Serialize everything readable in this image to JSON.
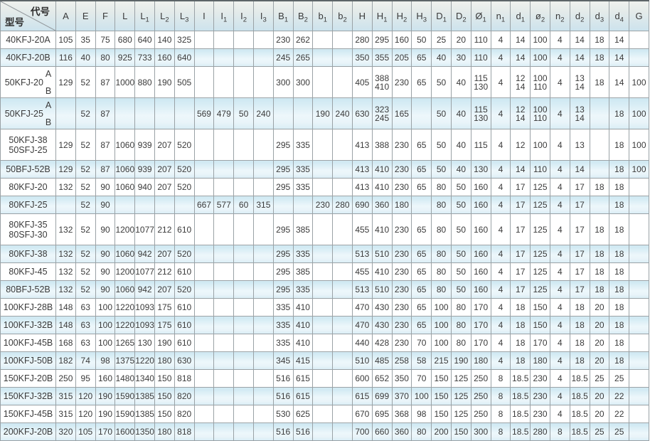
{
  "header": {
    "corner_top": "代号",
    "corner_bottom": "型号"
  },
  "colors": {
    "shaded_row_top": "#cde8f2",
    "shaded_row_bottom": "#d9edf5",
    "header_top": "#eff1ee",
    "header_bottom": "#cde3ed",
    "grid_line": "#9aa2a6",
    "text": "#3a3a3a"
  },
  "columns": [
    {
      "base": "A",
      "sub": ""
    },
    {
      "base": "E",
      "sub": ""
    },
    {
      "base": "F",
      "sub": ""
    },
    {
      "base": "L",
      "sub": ""
    },
    {
      "base": "L",
      "sub": "1"
    },
    {
      "base": "L",
      "sub": "2"
    },
    {
      "base": "L",
      "sub": "3"
    },
    {
      "base": "I",
      "sub": ""
    },
    {
      "base": "I",
      "sub": "1"
    },
    {
      "base": "I",
      "sub": "2"
    },
    {
      "base": "I",
      "sub": "3"
    },
    {
      "base": "B",
      "sub": "1"
    },
    {
      "base": "B",
      "sub": "2"
    },
    {
      "base": "b",
      "sub": "1"
    },
    {
      "base": "b",
      "sub": "2"
    },
    {
      "base": "H",
      "sub": ""
    },
    {
      "base": "H",
      "sub": "1"
    },
    {
      "base": "H",
      "sub": "2"
    },
    {
      "base": "H",
      "sub": "3"
    },
    {
      "base": "D",
      "sub": "1"
    },
    {
      "base": "D",
      "sub": "2"
    },
    {
      "base": "Ø",
      "sub": "1"
    },
    {
      "base": "n",
      "sub": "1"
    },
    {
      "base": "d",
      "sub": "1"
    },
    {
      "base": "ø",
      "sub": "2"
    },
    {
      "base": "n",
      "sub": "2"
    },
    {
      "base": "d",
      "sub": "2"
    },
    {
      "base": "d",
      "sub": "3"
    },
    {
      "base": "d",
      "sub": "4"
    },
    {
      "base": "G",
      "sub": ""
    }
  ],
  "rows": [
    {
      "model": [
        "40KFJ-20A"
      ],
      "variants": null,
      "shaded": false,
      "tall": false,
      "values": [
        "105",
        "35",
        "75",
        "680",
        "640",
        "140",
        "325",
        "",
        "",
        "",
        "",
        "230",
        "262",
        "",
        "",
        "280",
        "295",
        "160",
        "50",
        "25",
        "20",
        "110",
        "4",
        "14",
        "100",
        "4",
        "14",
        "18",
        "14",
        ""
      ]
    },
    {
      "model": [
        "40KFJ-20B"
      ],
      "variants": null,
      "shaded": true,
      "tall": false,
      "values": [
        "116",
        "40",
        "80",
        "925",
        "733",
        "160",
        "640",
        "",
        "",
        "",
        "",
        "245",
        "265",
        "",
        "",
        "350",
        "355",
        "205",
        "65",
        "40",
        "30",
        "110",
        "4",
        "14",
        "100",
        "4",
        "14",
        "18",
        "14",
        ""
      ]
    },
    {
      "model": [
        "50KFJ-20"
      ],
      "variants": [
        "A",
        "B"
      ],
      "shaded": false,
      "tall": true,
      "values": [
        "129",
        "52",
        "87",
        "1000",
        "880",
        "190",
        "505",
        "",
        "",
        "",
        "",
        "300",
        "300",
        "",
        "",
        "405",
        {
          "top": "388",
          "bottom": "410"
        },
        "230",
        "65",
        "50",
        "40",
        {
          "top": "115",
          "bottom": "130"
        },
        "4",
        {
          "top": "12",
          "bottom": "14"
        },
        {
          "top": "100",
          "bottom": "110"
        },
        "4",
        {
          "top": "13",
          "bottom": "14"
        },
        "18",
        "14",
        "100"
      ]
    },
    {
      "model": [
        "50KFJ-25"
      ],
      "variants": [
        "A",
        "B"
      ],
      "shaded": true,
      "tall": true,
      "values": [
        "",
        "52",
        "87",
        "",
        "",
        "",
        "",
        "569",
        "479",
        "50",
        "240",
        "",
        "",
        "190",
        "240",
        "630",
        {
          "top": "323",
          "bottom": "245"
        },
        "165",
        "",
        "50",
        "40",
        {
          "top": "115",
          "bottom": "130"
        },
        "4",
        {
          "top": "12",
          "bottom": "14"
        },
        {
          "top": "100",
          "bottom": "110"
        },
        "4",
        {
          "top": "13",
          "bottom": "14"
        },
        "",
        "18",
        "100"
      ]
    },
    {
      "model": [
        "50KFJ-38",
        "50SFJ-25"
      ],
      "variants": null,
      "shaded": false,
      "tall": true,
      "values": [
        "129",
        "52",
        "87",
        "1060",
        "939",
        "207",
        "520",
        "",
        "",
        "",
        "",
        "295",
        "335",
        "",
        "",
        "413",
        "388",
        "230",
        "65",
        "50",
        "40",
        "115",
        "4",
        "12",
        "100",
        "4",
        "13",
        "",
        "18",
        "100"
      ]
    },
    {
      "model": [
        "50BFJ-52B"
      ],
      "variants": null,
      "shaded": true,
      "tall": false,
      "values": [
        "129",
        "52",
        "87",
        "1060",
        "939",
        "207",
        "520",
        "",
        "",
        "",
        "",
        "295",
        "335",
        "",
        "",
        "413",
        "410",
        "230",
        "65",
        "50",
        "40",
        "130",
        "4",
        "14",
        "110",
        "4",
        "14",
        "",
        "18",
        "100"
      ]
    },
    {
      "model": [
        "80KFJ-20"
      ],
      "variants": null,
      "shaded": false,
      "tall": false,
      "values": [
        "132",
        "52",
        "90",
        "1060",
        "940",
        "207",
        "520",
        "",
        "",
        "",
        "",
        "295",
        "335",
        "",
        "",
        "413",
        "410",
        "230",
        "65",
        "80",
        "50",
        "160",
        "4",
        "17",
        "125",
        "4",
        "17",
        "18",
        "18",
        ""
      ]
    },
    {
      "model": [
        "80KFJ-25"
      ],
      "variants": null,
      "shaded": true,
      "tall": false,
      "values": [
        "",
        "52",
        "90",
        "",
        "",
        "",
        "",
        "667",
        "577",
        "60",
        "315",
        "",
        "",
        "230",
        "280",
        "690",
        "360",
        "180",
        "",
        "80",
        "50",
        "160",
        "4",
        "17",
        "125",
        "4",
        "17",
        "",
        "18",
        ""
      ]
    },
    {
      "model": [
        "80KFJ-35",
        "80SFJ-30"
      ],
      "variants": null,
      "shaded": false,
      "tall": true,
      "values": [
        "132",
        "52",
        "90",
        "1200",
        "1077",
        "212",
        "610",
        "",
        "",
        "",
        "",
        "295",
        "385",
        "",
        "",
        "455",
        "410",
        "230",
        "65",
        "80",
        "50",
        "160",
        "4",
        "17",
        "125",
        "4",
        "17",
        "18",
        "18",
        ""
      ]
    },
    {
      "model": [
        "80KFJ-38"
      ],
      "variants": null,
      "shaded": true,
      "tall": false,
      "values": [
        "132",
        "52",
        "90",
        "1060",
        "942",
        "207",
        "520",
        "",
        "",
        "",
        "",
        "295",
        "335",
        "",
        "",
        "513",
        "510",
        "230",
        "65",
        "80",
        "50",
        "160",
        "4",
        "17",
        "125",
        "4",
        "17",
        "18",
        "18",
        ""
      ]
    },
    {
      "model": [
        "80KFJ-45"
      ],
      "variants": null,
      "shaded": false,
      "tall": false,
      "values": [
        "132",
        "52",
        "90",
        "1200",
        "1077",
        "212",
        "610",
        "",
        "",
        "",
        "",
        "295",
        "385",
        "",
        "",
        "455",
        "410",
        "230",
        "65",
        "80",
        "50",
        "160",
        "4",
        "17",
        "125",
        "4",
        "17",
        "18",
        "18",
        ""
      ]
    },
    {
      "model": [
        "80BFJ-52B"
      ],
      "variants": null,
      "shaded": true,
      "tall": false,
      "values": [
        "132",
        "52",
        "90",
        "1060",
        "942",
        "207",
        "520",
        "",
        "",
        "",
        "",
        "295",
        "335",
        "",
        "",
        "513",
        "510",
        "230",
        "65",
        "80",
        "50",
        "160",
        "4",
        "17",
        "125",
        "4",
        "17",
        "18",
        "18",
        ""
      ]
    },
    {
      "model": [
        "100KFJ-28B"
      ],
      "variants": null,
      "shaded": false,
      "tall": false,
      "values": [
        "148",
        "63",
        "100",
        "1220",
        "1093",
        "175",
        "610",
        "",
        "",
        "",
        "",
        "335",
        "410",
        "",
        "",
        "470",
        "430",
        "230",
        "65",
        "100",
        "80",
        "170",
        "4",
        "18",
        "150",
        "4",
        "18",
        "20",
        "18",
        ""
      ]
    },
    {
      "model": [
        "100KFJ-32B"
      ],
      "variants": null,
      "shaded": true,
      "tall": false,
      "values": [
        "148",
        "63",
        "100",
        "1220",
        "1093",
        "175",
        "610",
        "",
        "",
        "",
        "",
        "335",
        "410",
        "",
        "",
        "470",
        "430",
        "230",
        "65",
        "100",
        "80",
        "170",
        "4",
        "18",
        "150",
        "4",
        "18",
        "20",
        "18",
        ""
      ]
    },
    {
      "model": [
        "100KFJ-45B"
      ],
      "variants": null,
      "shaded": false,
      "tall": false,
      "values": [
        "168",
        "63",
        "100",
        "1265",
        "130",
        "190",
        "610",
        "",
        "",
        "",
        "",
        "335",
        "410",
        "",
        "",
        "440",
        "428",
        "230",
        "70",
        "100",
        "80",
        "170",
        "4",
        "18",
        "170",
        "4",
        "18",
        "20",
        "18",
        ""
      ]
    },
    {
      "model": [
        "100KFJ-50B"
      ],
      "variants": null,
      "shaded": true,
      "tall": false,
      "values": [
        "182",
        "74",
        "98",
        "1375",
        "1220",
        "180",
        "630",
        "",
        "",
        "",
        "",
        "345",
        "415",
        "",
        "",
        "510",
        "485",
        "258",
        "58",
        "215",
        "190",
        "180",
        "4",
        "18",
        "180",
        "4",
        "18",
        "20",
        "18",
        ""
      ]
    },
    {
      "model": [
        "150KFJ-20B"
      ],
      "variants": null,
      "shaded": false,
      "tall": false,
      "values": [
        "250",
        "95",
        "160",
        "1480",
        "1340",
        "150",
        "818",
        "",
        "",
        "",
        "",
        "516",
        "615",
        "",
        "",
        "600",
        "652",
        "350",
        "70",
        "150",
        "125",
        "250",
        "8",
        "18.5",
        "230",
        "4",
        "18.5",
        "25",
        "25",
        ""
      ]
    },
    {
      "model": [
        "150KFJ-32B"
      ],
      "variants": null,
      "shaded": true,
      "tall": false,
      "values": [
        "315",
        "120",
        "190",
        "1590",
        "1385",
        "150",
        "820",
        "",
        "",
        "",
        "",
        "516",
        "615",
        "",
        "",
        "615",
        "699",
        "370",
        "100",
        "150",
        "125",
        "250",
        "8",
        "18.5",
        "230",
        "4",
        "18.5",
        "20",
        "22",
        ""
      ]
    },
    {
      "model": [
        "150KFJ-45B"
      ],
      "variants": null,
      "shaded": false,
      "tall": false,
      "values": [
        "315",
        "120",
        "190",
        "1590",
        "1385",
        "150",
        "820",
        "",
        "",
        "",
        "",
        "530",
        "625",
        "",
        "",
        "670",
        "695",
        "368",
        "98",
        "150",
        "125",
        "250",
        "8",
        "18.5",
        "230",
        "4",
        "18.5",
        "20",
        "22",
        ""
      ]
    },
    {
      "model": [
        "200KFJ-20B"
      ],
      "variants": null,
      "shaded": true,
      "tall": false,
      "values": [
        "320",
        "105",
        "170",
        "1600",
        "1350",
        "180",
        "818",
        "",
        "",
        "",
        "",
        "516",
        "516",
        "",
        "",
        "700",
        "660",
        "360",
        "80",
        "200",
        "150",
        "300",
        "8",
        "18.5",
        "280",
        "8",
        "18.5",
        "25",
        "25",
        ""
      ]
    }
  ]
}
